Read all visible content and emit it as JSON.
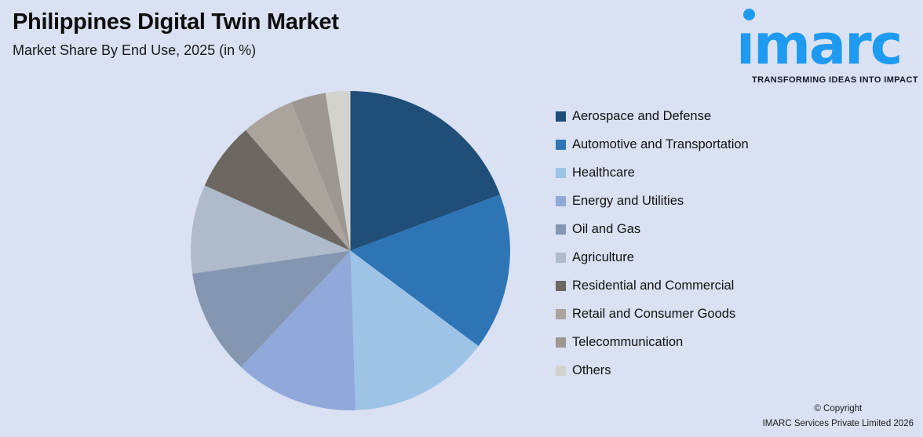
{
  "header": {
    "title": "Philippines Digital Twin Market",
    "subtitle": "Market Share By End Use, 2025 (in %)"
  },
  "logo": {
    "brand": "imarc",
    "tagline": "TRANSFORMING IDEAS INTO IMPACT",
    "color": "#1E9BF0"
  },
  "chart_data": {
    "type": "pie",
    "title": "Philippines Digital Twin Market",
    "subtitle": "Market Share By End Use, 2025 (in %)",
    "unit": "%",
    "legend_position": "right",
    "start_angle_deg": 0,
    "direction": "clockwise",
    "slices": [
      {
        "label": "Aerospace and Defense",
        "value": 19.3,
        "color": "#1F4E79"
      },
      {
        "label": "Automotive and Transportation",
        "value": 15.9,
        "color": "#2E75B6"
      },
      {
        "label": "Healthcare",
        "value": 14.3,
        "color": "#9DC3E6"
      },
      {
        "label": "Energy and Utilities",
        "value": 12.5,
        "color": "#90A8DA"
      },
      {
        "label": "Oil and Gas",
        "value": 10.7,
        "color": "#8496B0"
      },
      {
        "label": "Agriculture",
        "value": 9.0,
        "color": "#AFBACA"
      },
      {
        "label": "Residential and Commercial",
        "value": 6.9,
        "color": "#6C6760"
      },
      {
        "label": "Retail and Consumer Goods",
        "value": 5.4,
        "color": "#ABA49D"
      },
      {
        "label": "Telecommunication",
        "value": 3.5,
        "color": "#9C9791"
      },
      {
        "label": "Others",
        "value": 2.5,
        "color": "#D3D3CE"
      }
    ]
  },
  "footer": {
    "line1": "© Copyright",
    "line2": "IMARC Services Private Limited 2026"
  },
  "colors": {
    "background": "#D9E1F2"
  }
}
